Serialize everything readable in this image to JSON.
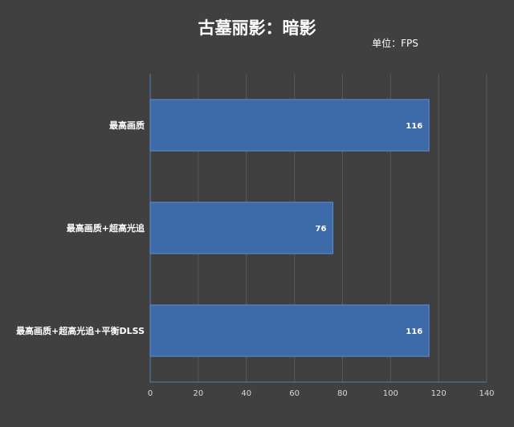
{
  "chart_data": {
    "type": "bar",
    "orientation": "horizontal",
    "title": "古墓丽影：暗影",
    "unit": "单位：FPS",
    "categories": [
      "最高画质",
      "最高画质+超高光追",
      "最高画质+超高光追+平衡DLSS"
    ],
    "values": [
      116,
      76,
      116
    ],
    "data_labels": [
      "116",
      "76",
      "116"
    ],
    "xlim": [
      0,
      140
    ],
    "x_ticks": [
      "0",
      "20",
      "40",
      "60",
      "80",
      "100",
      "120",
      "140"
    ],
    "grid": true,
    "legend": false,
    "colors": {
      "background": "#404040",
      "bar": "#3d6aa8",
      "bar_border": "#5b8fd6",
      "axis": "#4f7fc0",
      "grid": "#5a5a5a"
    }
  }
}
